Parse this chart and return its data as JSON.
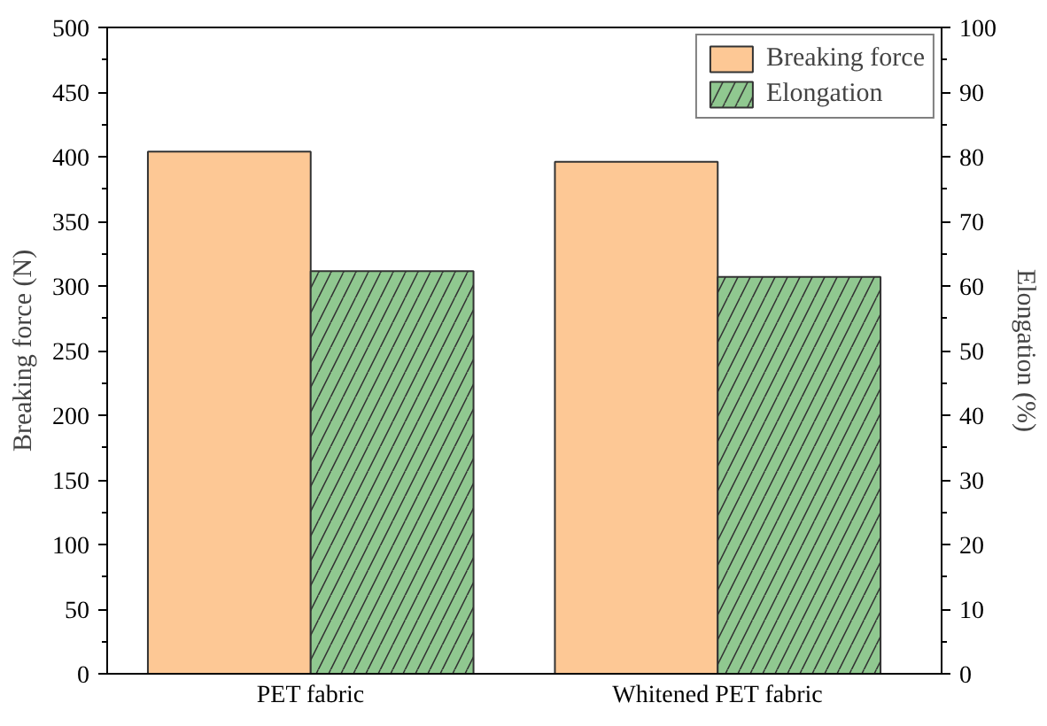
{
  "chart_data": {
    "type": "bar",
    "categories": [
      "PET fabric",
      "Whitened PET fabric"
    ],
    "ylabel": "Breaking force (N)",
    "y2label": "Elongation (%)",
    "series": [
      {
        "name": "Breaking force",
        "color": "#fdc895",
        "values": [
          404,
          396
        ]
      },
      {
        "name": "Elongation",
        "color": "#90c890",
        "values": [
          62.3,
          61.4
        ],
        "axis": "y2"
      }
    ],
    "ylim": [
      0,
      500
    ],
    "yticks": [
      0,
      50,
      100,
      150,
      200,
      250,
      300,
      350,
      400,
      450,
      500
    ],
    "y2lim": [
      0,
      100
    ],
    "y2ticks": [
      0,
      10,
      20,
      30,
      40,
      50,
      60,
      70,
      80,
      90,
      100
    ],
    "legend": "top right",
    "grid": false
  }
}
